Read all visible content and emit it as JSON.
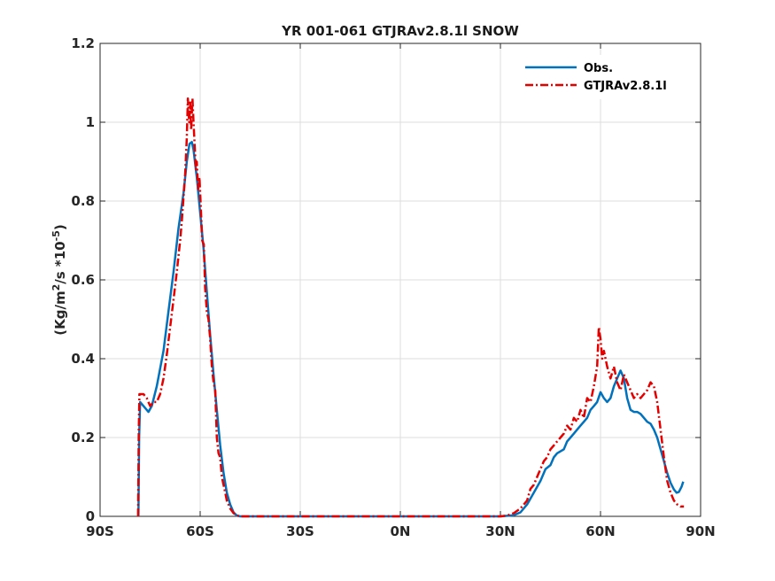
{
  "chart_data": {
    "type": "line",
    "title": "YR 001-061 GTJRAv2.8.1l SNOW",
    "ylabel_main": "(Kg/m",
    "ylabel_sup1": "2",
    "ylabel_mid": "/s *10",
    "ylabel_sup2": "-5",
    "ylabel_end": ")",
    "xlim": [
      -90,
      90
    ],
    "ylim": [
      0,
      1.2
    ],
    "grid": true,
    "legend_position": "top-right",
    "x_ticks": [
      {
        "value": -90,
        "label": "90S"
      },
      {
        "value": -60,
        "label": "60S"
      },
      {
        "value": -30,
        "label": "30S"
      },
      {
        "value": 0,
        "label": "0N"
      },
      {
        "value": 30,
        "label": "30N"
      },
      {
        "value": 60,
        "label": "60N"
      },
      {
        "value": 90,
        "label": "90N"
      }
    ],
    "y_ticks": [
      {
        "value": 0,
        "label": "0"
      },
      {
        "value": 0.2,
        "label": "0.2"
      },
      {
        "value": 0.4,
        "label": "0.4"
      },
      {
        "value": 0.6,
        "label": "0.6"
      },
      {
        "value": 0.8,
        "label": "0.8"
      },
      {
        "value": 1.0,
        "label": "1"
      },
      {
        "value": 1.2,
        "label": "1.2"
      }
    ],
    "series": [
      {
        "name": "Obs.",
        "color": "#0072bd",
        "style": "solid",
        "points": [
          [
            -78.5,
            0
          ],
          [
            -78.3,
            0.2
          ],
          [
            -78,
            0.29
          ],
          [
            -77,
            0.28
          ],
          [
            -75.5,
            0.265
          ],
          [
            -74.5,
            0.28
          ],
          [
            -73,
            0.33
          ],
          [
            -71,
            0.42
          ],
          [
            -69.5,
            0.52
          ],
          [
            -68,
            0.62
          ],
          [
            -66.5,
            0.73
          ],
          [
            -65,
            0.82
          ],
          [
            -64,
            0.9
          ],
          [
            -63.2,
            0.945
          ],
          [
            -62.5,
            0.95
          ],
          [
            -62,
            0.93
          ],
          [
            -61,
            0.86
          ],
          [
            -60,
            0.77
          ],
          [
            -59,
            0.68
          ],
          [
            -58,
            0.57
          ],
          [
            -57,
            0.46
          ],
          [
            -56,
            0.36
          ],
          [
            -55,
            0.27
          ],
          [
            -54,
            0.18
          ],
          [
            -53,
            0.11
          ],
          [
            -52,
            0.06
          ],
          [
            -51,
            0.03
          ],
          [
            -50,
            0.01
          ],
          [
            -49,
            0.002
          ],
          [
            -48,
            0
          ],
          [
            -30,
            0
          ],
          [
            0,
            0
          ],
          [
            30,
            0
          ],
          [
            34,
            0.003
          ],
          [
            36,
            0.01
          ],
          [
            38,
            0.03
          ],
          [
            40,
            0.06
          ],
          [
            42,
            0.09
          ],
          [
            43.5,
            0.12
          ],
          [
            45,
            0.13
          ],
          [
            46,
            0.15
          ],
          [
            47,
            0.16
          ],
          [
            48,
            0.165
          ],
          [
            49,
            0.17
          ],
          [
            50,
            0.19
          ],
          [
            51,
            0.2
          ],
          [
            52,
            0.21
          ],
          [
            53,
            0.22
          ],
          [
            54,
            0.23
          ],
          [
            55,
            0.24
          ],
          [
            56,
            0.25
          ],
          [
            57,
            0.27
          ],
          [
            58,
            0.28
          ],
          [
            59,
            0.29
          ],
          [
            60,
            0.315
          ],
          [
            61,
            0.3
          ],
          [
            62,
            0.29
          ],
          [
            63,
            0.3
          ],
          [
            64,
            0.33
          ],
          [
            65,
            0.35
          ],
          [
            66,
            0.37
          ],
          [
            67,
            0.35
          ],
          [
            68,
            0.3
          ],
          [
            69,
            0.27
          ],
          [
            70,
            0.265
          ],
          [
            71,
            0.265
          ],
          [
            72,
            0.26
          ],
          [
            73,
            0.25
          ],
          [
            74,
            0.24
          ],
          [
            75,
            0.235
          ],
          [
            76,
            0.22
          ],
          [
            77,
            0.2
          ],
          [
            78,
            0.17
          ],
          [
            79,
            0.14
          ],
          [
            80,
            0.11
          ],
          [
            81,
            0.085
          ],
          [
            82,
            0.068
          ],
          [
            82.8,
            0.06
          ],
          [
            83.5,
            0.062
          ],
          [
            84.3,
            0.075
          ],
          [
            84.8,
            0.088
          ]
        ]
      },
      {
        "name": "GTJRAv2.8.1l",
        "color": "#e50000",
        "style": "dash-dot",
        "points": [
          [
            -78.6,
            0
          ],
          [
            -78.4,
            0.22
          ],
          [
            -78.2,
            0.31
          ],
          [
            -77,
            0.31
          ],
          [
            -76,
            0.3
          ],
          [
            -75,
            0.28
          ],
          [
            -74,
            0.29
          ],
          [
            -73,
            0.29
          ],
          [
            -72,
            0.31
          ],
          [
            -71,
            0.35
          ],
          [
            -70,
            0.41
          ],
          [
            -69,
            0.48
          ],
          [
            -68,
            0.55
          ],
          [
            -67,
            0.62
          ],
          [
            -66.5,
            0.66
          ],
          [
            -66,
            0.7
          ],
          [
            -65.5,
            0.75
          ],
          [
            -65,
            0.81
          ],
          [
            -64.5,
            0.87
          ],
          [
            -64,
            0.96
          ],
          [
            -63.7,
            1.06
          ],
          [
            -63.3,
            1.0
          ],
          [
            -63,
            1.05
          ],
          [
            -62.7,
            0.98
          ],
          [
            -62.3,
            1.06
          ],
          [
            -62,
            1.0
          ],
          [
            -61.7,
            0.95
          ],
          [
            -61.3,
            0.88
          ],
          [
            -61,
            0.9
          ],
          [
            -60.6,
            0.83
          ],
          [
            -60.2,
            0.86
          ],
          [
            -59.8,
            0.78
          ],
          [
            -59.4,
            0.7
          ],
          [
            -58.9,
            0.69
          ],
          [
            -58.5,
            0.58
          ],
          [
            -58,
            0.52
          ],
          [
            -57.5,
            0.5
          ],
          [
            -57,
            0.45
          ],
          [
            -56.5,
            0.38
          ],
          [
            -56,
            0.34
          ],
          [
            -55.5,
            0.32
          ],
          [
            -55,
            0.2
          ],
          [
            -54.5,
            0.16
          ],
          [
            -54,
            0.15
          ],
          [
            -53.5,
            0.1
          ],
          [
            -53,
            0.08
          ],
          [
            -52.5,
            0.06
          ],
          [
            -52,
            0.04
          ],
          [
            -51.5,
            0.03
          ],
          [
            -51,
            0.02
          ],
          [
            -50,
            0.008
          ],
          [
            -49,
            0.002
          ],
          [
            -48,
            0
          ],
          [
            -30,
            0
          ],
          [
            0,
            0
          ],
          [
            30,
            0
          ],
          [
            32,
            0.002
          ],
          [
            34,
            0.008
          ],
          [
            36,
            0.02
          ],
          [
            38,
            0.04
          ],
          [
            39,
            0.07
          ],
          [
            40,
            0.08
          ],
          [
            41,
            0.1
          ],
          [
            42,
            0.12
          ],
          [
            43,
            0.14
          ],
          [
            44,
            0.15
          ],
          [
            45,
            0.17
          ],
          [
            46,
            0.18
          ],
          [
            47,
            0.19
          ],
          [
            48,
            0.2
          ],
          [
            49,
            0.21
          ],
          [
            50,
            0.23
          ],
          [
            51,
            0.22
          ],
          [
            52,
            0.25
          ],
          [
            53,
            0.24
          ],
          [
            54,
            0.27
          ],
          [
            55,
            0.25
          ],
          [
            56,
            0.3
          ],
          [
            57,
            0.29
          ],
          [
            58,
            0.33
          ],
          [
            59,
            0.38
          ],
          [
            59.5,
            0.48
          ],
          [
            60,
            0.45
          ],
          [
            60.5,
            0.4
          ],
          [
            61,
            0.42
          ],
          [
            62,
            0.38
          ],
          [
            63,
            0.35
          ],
          [
            64,
            0.38
          ],
          [
            65,
            0.34
          ],
          [
            66,
            0.32
          ],
          [
            67,
            0.36
          ],
          [
            68,
            0.34
          ],
          [
            69,
            0.32
          ],
          [
            70,
            0.3
          ],
          [
            71,
            0.31
          ],
          [
            72,
            0.3
          ],
          [
            73,
            0.31
          ],
          [
            74,
            0.32
          ],
          [
            75,
            0.34
          ],
          [
            76,
            0.33
          ],
          [
            77,
            0.29
          ],
          [
            78,
            0.22
          ],
          [
            79,
            0.15
          ],
          [
            80,
            0.09
          ],
          [
            81,
            0.06
          ],
          [
            82,
            0.04
          ],
          [
            83,
            0.03
          ],
          [
            84,
            0.025
          ],
          [
            85,
            0.025
          ]
        ]
      }
    ]
  }
}
